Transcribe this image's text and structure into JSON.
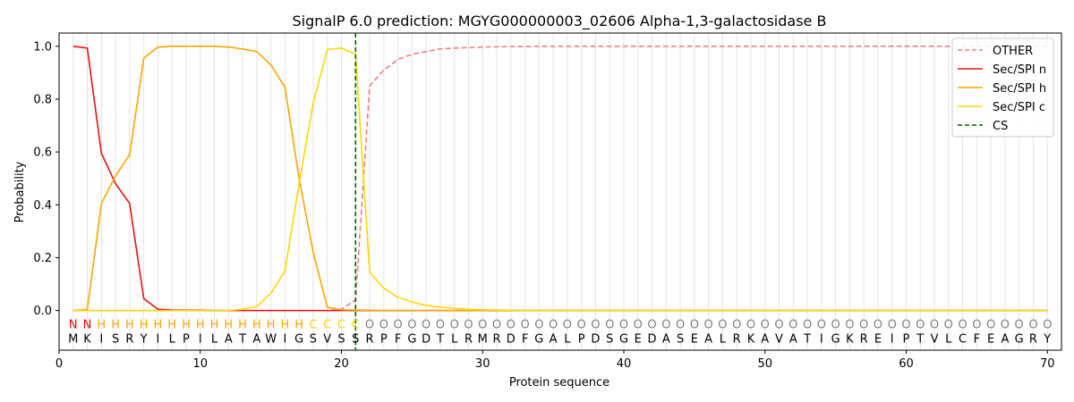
{
  "chart_data": {
    "type": "line",
    "title": "SignalP 6.0 prediction: MGYG000000003_02606 Alpha-1,3-galactosidase B",
    "xlabel": "Protein sequence",
    "ylabel": "Probability",
    "xlim": [
      0,
      71
    ],
    "ylim": [
      -0.15,
      1.05
    ],
    "xticks": [
      "0",
      "10",
      "20",
      "30",
      "40",
      "50",
      "60",
      "70"
    ],
    "yticks": [
      "0.0",
      "0.2",
      "0.4",
      "0.6",
      "0.8",
      "1.0"
    ],
    "grid": "vertical lines at each position",
    "legend_position": "top-right",
    "sequence": [
      "M",
      "K",
      "I",
      "S",
      "R",
      "Y",
      "I",
      "L",
      "P",
      "I",
      "L",
      "A",
      "T",
      "A",
      "W",
      "I",
      "G",
      "S",
      "V",
      "S",
      "S",
      "R",
      "P",
      "F",
      "G",
      "D",
      "T",
      "L",
      "R",
      "M",
      "R",
      "D",
      "F",
      "G",
      "A",
      "L",
      "P",
      "D",
      "S",
      "G",
      "E",
      "D",
      "A",
      "S",
      "E",
      "A",
      "L",
      "R",
      "K",
      "A",
      "V",
      "A",
      "T",
      "I",
      "G",
      "K",
      "R",
      "E",
      "I",
      "P",
      "T",
      "V",
      "L",
      "C",
      "F",
      "E",
      "A",
      "G",
      "R",
      "Y"
    ],
    "labels": [
      "N",
      "N",
      "H",
      "H",
      "H",
      "H",
      "H",
      "H",
      "H",
      "H",
      "H",
      "H",
      "H",
      "H",
      "H",
      "H",
      "H",
      "C",
      "C",
      "C",
      "C",
      "O",
      "O",
      "O",
      "O",
      "O",
      "O",
      "O",
      "O",
      "O",
      "O",
      "O",
      "O",
      "O",
      "O",
      "O",
      "O",
      "O",
      "O",
      "O",
      "O",
      "O",
      "O",
      "O",
      "O",
      "O",
      "O",
      "O",
      "O",
      "O",
      "O",
      "O",
      "O",
      "O",
      "O",
      "O",
      "O",
      "O",
      "O",
      "O",
      "O",
      "O",
      "O",
      "O",
      "O",
      "O",
      "O",
      "O",
      "O",
      "O"
    ],
    "label_colors": {
      "N": "#ff0000",
      "H": "#ffa500",
      "C": "#ffd700",
      "O": "#808080"
    },
    "cs_position": 21,
    "series": [
      {
        "name": "OTHER",
        "color": "#f08080",
        "dashed": true,
        "values": [
          0,
          0,
          0,
          0,
          0,
          0,
          0,
          0,
          0,
          0,
          0,
          0,
          0,
          0,
          0,
          0,
          0,
          0,
          0,
          0.005,
          0.04,
          0.85,
          0.91,
          0.95,
          0.97,
          0.98,
          0.99,
          0.993,
          0.995,
          0.997,
          0.998,
          0.999,
          0.999,
          1,
          1,
          1,
          1,
          1,
          1,
          1,
          1,
          1,
          1,
          1,
          1,
          1,
          1,
          1,
          1,
          1,
          1,
          1,
          1,
          1,
          1,
          1,
          1,
          1,
          1,
          1,
          1,
          1,
          1,
          1,
          1,
          1,
          1,
          1,
          1,
          1
        ]
      },
      {
        "name": "Sec/SPI n",
        "color": "#e8120c",
        "dashed": false,
        "values": [
          1.0,
          0.993,
          0.595,
          0.48,
          0.405,
          0.045,
          0.005,
          0.002,
          0.001,
          0.001,
          0,
          0,
          0,
          0,
          0,
          0,
          0,
          0,
          0,
          0,
          0,
          0,
          0,
          0,
          0,
          0,
          0,
          0,
          0,
          0,
          0,
          0,
          0,
          0,
          0,
          0,
          0,
          0,
          0,
          0,
          0,
          0,
          0,
          0,
          0,
          0,
          0,
          0,
          0,
          0,
          0,
          0,
          0,
          0,
          0,
          0,
          0,
          0,
          0,
          0,
          0,
          0,
          0,
          0,
          0,
          0,
          0,
          0,
          0,
          0
        ]
      },
      {
        "name": "Sec/SPI h",
        "color": "#ffa500",
        "dashed": false,
        "values": [
          0,
          0.005,
          0.405,
          0.51,
          0.59,
          0.955,
          0.997,
          1.0,
          1.0,
          1.0,
          1.0,
          0.997,
          0.99,
          0.98,
          0.93,
          0.845,
          0.5,
          0.22,
          0.012,
          0.003,
          0.002,
          0.001,
          0,
          0,
          0,
          0,
          0,
          0,
          0,
          0,
          0,
          0,
          0,
          0,
          0,
          0,
          0,
          0,
          0,
          0,
          0,
          0,
          0,
          0,
          0,
          0,
          0,
          0,
          0,
          0,
          0,
          0,
          0,
          0,
          0,
          0,
          0,
          0,
          0,
          0,
          0,
          0,
          0,
          0,
          0,
          0,
          0,
          0,
          0,
          0
        ]
      },
      {
        "name": "Sec/SPI c",
        "color": "#ffd700",
        "dashed": false,
        "values": [
          0,
          0,
          0,
          0,
          0,
          0,
          0,
          0,
          0,
          0,
          0,
          0,
          0.005,
          0.015,
          0.065,
          0.15,
          0.48,
          0.785,
          0.988,
          0.993,
          0.97,
          0.145,
          0.085,
          0.05,
          0.032,
          0.02,
          0.013,
          0.008,
          0.005,
          0.003,
          0.002,
          0.001,
          0,
          0,
          0,
          0,
          0,
          0,
          0,
          0,
          0,
          0,
          0,
          0,
          0,
          0,
          0,
          0,
          0,
          0,
          0,
          0,
          0,
          0,
          0,
          0,
          0,
          0,
          0,
          0,
          0,
          0,
          0,
          0,
          0,
          0,
          0,
          0,
          0,
          0
        ]
      }
    ],
    "legend_entries": [
      {
        "name": "OTHER",
        "color": "#f08080",
        "dashed": true
      },
      {
        "name": "Sec/SPI n",
        "color": "#e8120c",
        "dashed": false
      },
      {
        "name": "Sec/SPI h",
        "color": "#ffa500",
        "dashed": false
      },
      {
        "name": "Sec/SPI c",
        "color": "#ffd700",
        "dashed": false
      },
      {
        "name": "CS",
        "color": "#006400",
        "dashed": true
      }
    ]
  }
}
